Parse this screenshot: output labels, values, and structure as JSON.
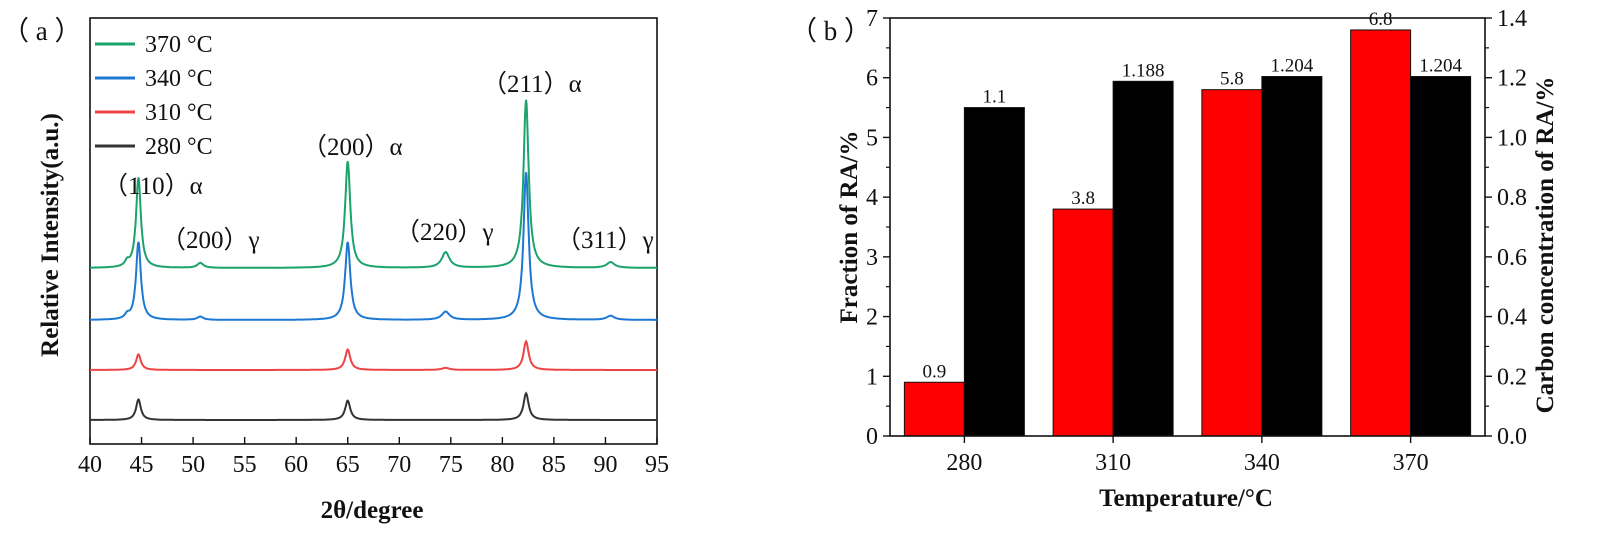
{
  "chart_data": [
    {
      "panel": "(a)",
      "panel_label": "（ a ）",
      "type": "line",
      "xlabel": "2θ/degree",
      "ylabel": "Relative Intensity(a.u.)",
      "xlim": [
        40,
        95
      ],
      "xticks": [
        40,
        45,
        50,
        55,
        60,
        65,
        70,
        75,
        80,
        85,
        90,
        95
      ],
      "y_ticks_shown": false,
      "legend": [
        "370 °C",
        "340 °C",
        "310 °C",
        "280 °C"
      ],
      "legend_position": "top-left",
      "series": [
        {
          "name": "370 °C",
          "color": "#1aa36b",
          "offset": 3,
          "peaks": [
            {
              "x": 43.6,
              "h": 0.12,
              "w": 0.25
            },
            {
              "x": 44.7,
              "h": 2.2,
              "w": 0.28
            },
            {
              "x": 50.7,
              "h": 0.12,
              "w": 0.35
            },
            {
              "x": 65.0,
              "h": 2.6,
              "w": 0.3
            },
            {
              "x": 74.5,
              "h": 0.38,
              "w": 0.45
            },
            {
              "x": 82.3,
              "h": 4.1,
              "w": 0.3
            },
            {
              "x": 90.5,
              "h": 0.14,
              "w": 0.45
            }
          ]
        },
        {
          "name": "340 °C",
          "color": "#1c78d3",
          "offset": 2,
          "peaks": [
            {
              "x": 43.6,
              "h": 0.1,
              "w": 0.25
            },
            {
              "x": 44.7,
              "h": 1.9,
              "w": 0.28
            },
            {
              "x": 50.7,
              "h": 0.08,
              "w": 0.35
            },
            {
              "x": 65.0,
              "h": 1.9,
              "w": 0.3
            },
            {
              "x": 74.5,
              "h": 0.2,
              "w": 0.45
            },
            {
              "x": 82.3,
              "h": 3.6,
              "w": 0.3
            },
            {
              "x": 90.5,
              "h": 0.1,
              "w": 0.45
            }
          ]
        },
        {
          "name": "310 °C",
          "color": "#ec4444",
          "offset": 1,
          "peaks": [
            {
              "x": 44.7,
              "h": 0.38,
              "w": 0.28
            },
            {
              "x": 65.0,
              "h": 0.5,
              "w": 0.3
            },
            {
              "x": 74.5,
              "h": 0.05,
              "w": 0.45
            },
            {
              "x": 82.3,
              "h": 0.7,
              "w": 0.3
            }
          ]
        },
        {
          "name": "280 °C",
          "color": "#333333",
          "offset": 0,
          "peaks": [
            {
              "x": 44.7,
              "h": 0.5,
              "w": 0.28
            },
            {
              "x": 65.0,
              "h": 0.47,
              "w": 0.3
            },
            {
              "x": 82.3,
              "h": 0.65,
              "w": 0.3
            }
          ]
        }
      ],
      "annotations": [
        "（110）α",
        "（200）γ",
        "（200）α",
        "（220）γ",
        "（211）α",
        "（311）γ"
      ]
    },
    {
      "panel": "(b)",
      "panel_label": "（ b ）",
      "type": "bar",
      "xlabel": "Temperature/°C",
      "ylabel": "Fraction of RA/%",
      "y2label": "Carbon concentration of RA/%",
      "categories": [
        "280",
        "310",
        "340",
        "370"
      ],
      "ylim": [
        0,
        7
      ],
      "yticks": [
        "0",
        "1",
        "2",
        "3",
        "4",
        "5",
        "6",
        "7"
      ],
      "y2lim": [
        0,
        1.4
      ],
      "y2ticks": [
        "0.0",
        "0.2",
        "0.4",
        "0.6",
        "0.8",
        "1.0",
        "1.2",
        "1.4"
      ],
      "series": [
        {
          "name": "Fraction of RA",
          "axis": "left",
          "color": "#ff0000",
          "values": [
            0.9,
            3.8,
            5.8,
            6.8
          ],
          "labels": [
            "0.9",
            "3.8",
            "5.8",
            "6.8"
          ]
        },
        {
          "name": "Carbon concentration of RA",
          "axis": "right",
          "color": "#000000",
          "values": [
            1.1,
            1.188,
            1.204,
            1.204
          ],
          "labels": [
            "1.1",
            "1.188",
            "1.204",
            "1.204"
          ]
        }
      ]
    }
  ]
}
